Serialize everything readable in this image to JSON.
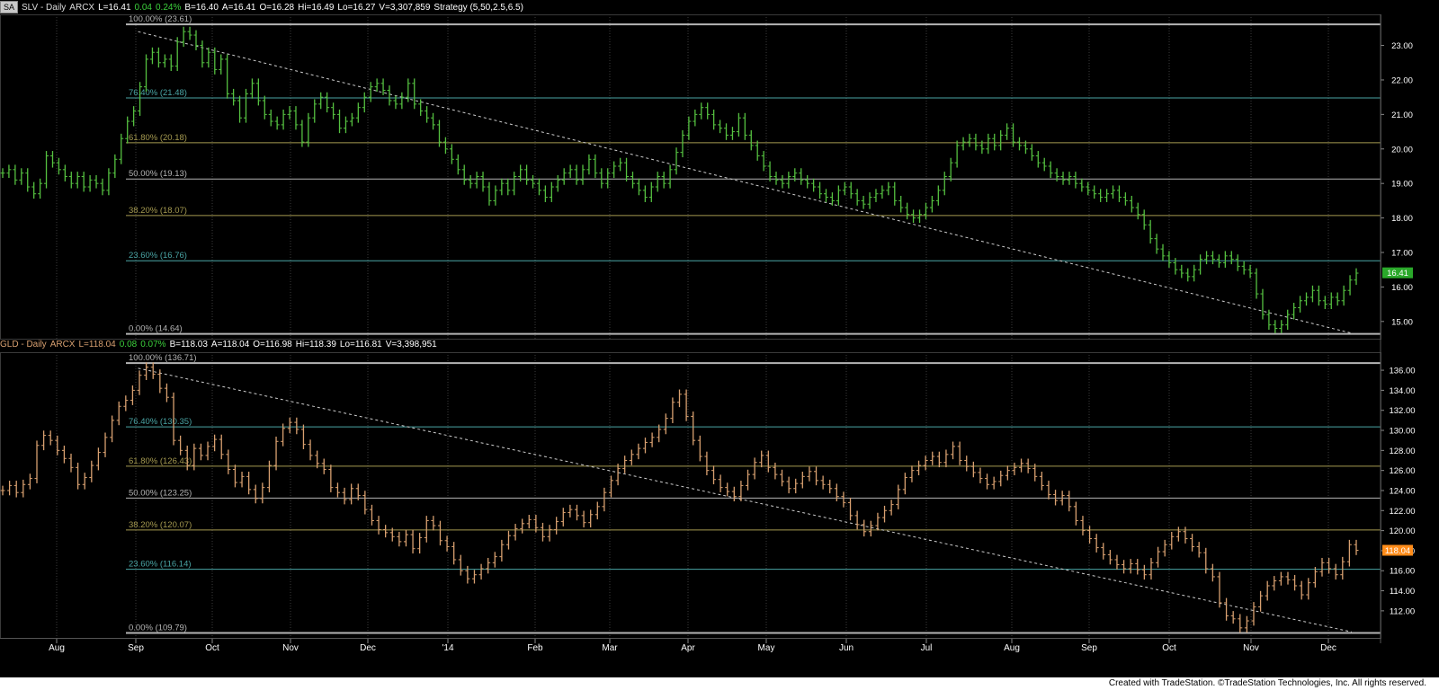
{
  "header_slv": {
    "sa": "SA",
    "symbol": "SLV - Daily",
    "exchange": "ARCX",
    "last": "L=16.41",
    "chg": "0.04",
    "pct": "0.24%",
    "bid": "B=16.40",
    "ask": "A=16.41",
    "open": "O=16.28",
    "hi": "Hi=16.49",
    "lo": "Lo=16.27",
    "vol": "V=3,307,859",
    "strategy": "Strategy (5,50,2.5,6.5)"
  },
  "header_gld": {
    "symbol": "GLD - Daily",
    "exchange": "ARCX",
    "last": "L=118.04",
    "chg": "0.08",
    "pct": "0.07%",
    "bid": "B=118.03",
    "ask": "A=118.04",
    "open": "O=116.98",
    "hi": "Hi=118.39",
    "lo": "Lo=116.81",
    "vol": "V=3,398,951"
  },
  "footer": {
    "text": "Created with TradeStation. ©TradeStation Technologies, Inc. All rights reserved."
  },
  "colors": {
    "background": "#000000",
    "slv_bars": "#55c040",
    "gld_bars": "#d8a070",
    "fib_gray": "#b4b4b4",
    "fib_teal": "#4aa5a5",
    "fib_olive": "#a59a50",
    "slv_last": "#2aa82a",
    "gld_last": "#ff8c1a"
  },
  "chart_data": [
    {
      "type": "ohlc",
      "name": "SLV - Daily",
      "x_tick_labels": [
        "Aug",
        "Sep",
        "Oct",
        "Nov",
        "Dec",
        "'14",
        "Feb",
        "Mar",
        "Apr",
        "May",
        "Jun",
        "Jul",
        "Aug",
        "Sep",
        "Oct",
        "Nov",
        "Dec"
      ],
      "y_tick_labels": [
        "23.00",
        "22.00",
        "21.00",
        "20.00",
        "19.00",
        "18.00",
        "17.00",
        "16.00",
        "15.00"
      ],
      "ylim": [
        14.5,
        23.9
      ],
      "last_value_label": "16.41",
      "fib_levels": [
        {
          "label": "100.00% (23.61)",
          "value": 23.61,
          "color": "#b4b4b4"
        },
        {
          "label": "76.40% (21.48)",
          "value": 21.48,
          "color": "#4aa5a5"
        },
        {
          "label": "61.80% (20.18)",
          "value": 20.18,
          "color": "#a59a50"
        },
        {
          "label": "50.00% (19.13)",
          "value": 19.13,
          "color": "#b4b4b4"
        },
        {
          "label": "38.20% (18.07)",
          "value": 18.07,
          "color": "#a59a50"
        },
        {
          "label": "23.60% (16.76)",
          "value": 16.76,
          "color": "#4aa5a5"
        },
        {
          "label": "0.00% (14.64)",
          "value": 14.64,
          "color": "#b4b4b4"
        }
      ],
      "trendline": [
        [
          0.1,
          23.4
        ],
        [
          0.979,
          14.66
        ]
      ],
      "series": [
        {
          "values": [
            19.3,
            19.4,
            19.1,
            19.3,
            18.9,
            18.7,
            19.0,
            19.8,
            19.6,
            19.4,
            19.2,
            19.0,
            19.2,
            18.9,
            19.1,
            19.0,
            18.8,
            19.3,
            19.7,
            20.3,
            20.8,
            21.1,
            21.8,
            22.6,
            22.8,
            22.5,
            22.6,
            22.4,
            23.1,
            23.4,
            23.3,
            23.0,
            22.5,
            22.8,
            22.3,
            22.6,
            21.6,
            21.4,
            20.9,
            21.6,
            21.9,
            21.4,
            21.0,
            20.8,
            20.7,
            21.0,
            21.1,
            20.7,
            20.2,
            20.9,
            21.3,
            21.5,
            21.2,
            21.0,
            20.6,
            20.8,
            20.9,
            21.2,
            21.5,
            21.8,
            21.9,
            21.7,
            21.4,
            21.3,
            21.5,
            21.9,
            21.3,
            21.1,
            20.9,
            20.7,
            20.2,
            20.0,
            19.7,
            19.4,
            19.1,
            19.0,
            19.2,
            18.9,
            18.5,
            18.8,
            19.0,
            18.8,
            19.2,
            19.4,
            19.1,
            19.0,
            18.8,
            18.6,
            18.9,
            19.1,
            19.3,
            19.4,
            19.1,
            19.4,
            19.7,
            19.3,
            19.0,
            19.3,
            19.5,
            19.6,
            19.2,
            19.0,
            18.8,
            18.6,
            18.9,
            19.2,
            19.0,
            19.4,
            19.9,
            20.4,
            20.8,
            21.0,
            21.2,
            21.0,
            20.7,
            20.6,
            20.4,
            20.5,
            20.9,
            20.4,
            20.1,
            19.8,
            19.5,
            19.2,
            19.1,
            19.0,
            19.2,
            19.3,
            19.1,
            19.0,
            18.9,
            18.7,
            18.6,
            18.5,
            18.8,
            18.9,
            18.7,
            18.5,
            18.4,
            18.6,
            18.7,
            18.8,
            18.9,
            18.5,
            18.3,
            18.1,
            18.0,
            18.1,
            18.3,
            18.5,
            18.8,
            19.2,
            19.6,
            20.1,
            20.2,
            20.3,
            20.1,
            20.0,
            20.3,
            20.1,
            20.4,
            20.6,
            20.2,
            20.1,
            20.0,
            19.8,
            19.6,
            19.5,
            19.3,
            19.2,
            19.1,
            19.2,
            19.0,
            18.9,
            18.8,
            18.7,
            18.6,
            18.7,
            18.8,
            18.6,
            18.5,
            18.3,
            18.1,
            17.8,
            17.4,
            17.1,
            16.9,
            16.7,
            16.5,
            16.4,
            16.3,
            16.5,
            16.8,
            16.9,
            16.8,
            16.7,
            16.9,
            16.8,
            16.6,
            16.5,
            16.4,
            15.8,
            15.2,
            14.9,
            14.8,
            14.9,
            15.2,
            15.4,
            15.6,
            15.7,
            15.9,
            15.6,
            15.5,
            15.7,
            15.6,
            15.9,
            16.2,
            16.4
          ]
        }
      ]
    },
    {
      "type": "ohlc",
      "name": "GLD - Daily",
      "x_tick_labels": [
        "Aug",
        "Sep",
        "Oct",
        "Nov",
        "Dec",
        "'14",
        "Feb",
        "Mar",
        "Apr",
        "May",
        "Jun",
        "Jul",
        "Aug",
        "Sep",
        "Oct",
        "Nov",
        "Dec"
      ],
      "y_tick_labels": [
        "136.00",
        "134.00",
        "132.00",
        "130.00",
        "128.00",
        "126.00",
        "124.00",
        "122.00",
        "120.00",
        "118.00",
        "116.00",
        "114.00",
        "112.00"
      ],
      "ylim": [
        109.3,
        137.8
      ],
      "last_value_label": "118.04",
      "fib_levels": [
        {
          "label": "100.00% (136.71)",
          "value": 136.71,
          "color": "#b4b4b4"
        },
        {
          "label": "76.40% (130.35)",
          "value": 130.35,
          "color": "#4aa5a5"
        },
        {
          "label": "61.80% (126.43)",
          "value": 126.43,
          "color": "#a59a50"
        },
        {
          "label": "50.00% (123.25)",
          "value": 123.25,
          "color": "#b4b4b4"
        },
        {
          "label": "38.20% (120.07)",
          "value": 120.07,
          "color": "#a59a50"
        },
        {
          "label": "23.60% (116.14)",
          "value": 116.14,
          "color": "#4aa5a5"
        },
        {
          "label": "0.00% (109.79)",
          "value": 109.79,
          "color": "#b4b4b4"
        }
      ],
      "trendline": [
        [
          0.1,
          136.2
        ],
        [
          0.979,
          109.9
        ]
      ],
      "series": [
        {
          "values": [
            124.0,
            124.5,
            123.8,
            124.6,
            125.2,
            128.5,
            129.5,
            129.0,
            128.0,
            127.2,
            126.3,
            124.6,
            125.3,
            126.5,
            127.8,
            129.3,
            131.0,
            132.4,
            133.0,
            134.0,
            135.5,
            136.3,
            135.6,
            134.2,
            133.3,
            129.0,
            128.0,
            126.5,
            128.2,
            127.5,
            128.4,
            129.1,
            127.6,
            126.1,
            124.8,
            125.4,
            124.1,
            123.2,
            124.3,
            126.5,
            128.9,
            130.2,
            130.8,
            130.1,
            128.6,
            127.5,
            126.7,
            126.1,
            124.3,
            123.8,
            123.1,
            124.2,
            123.5,
            122.1,
            121.0,
            120.1,
            119.8,
            119.4,
            118.9,
            119.6,
            118.2,
            119.3,
            121.0,
            120.5,
            119.0,
            118.4,
            117.1,
            116.0,
            115.2,
            115.6,
            116.2,
            116.8,
            117.4,
            118.6,
            119.5,
            120.2,
            120.7,
            121.1,
            120.3,
            119.4,
            120.1,
            120.9,
            121.8,
            122.1,
            121.5,
            120.8,
            121.6,
            122.4,
            123.8,
            125.0,
            126.2,
            127.0,
            127.6,
            128.2,
            128.8,
            129.3,
            130.1,
            131.2,
            132.8,
            133.6,
            131.4,
            129.0,
            127.4,
            126.0,
            125.1,
            124.3,
            123.9,
            123.4,
            124.5,
            125.6,
            126.8,
            127.5,
            126.3,
            125.6,
            124.9,
            124.2,
            124.7,
            125.4,
            125.9,
            125.0,
            124.6,
            124.2,
            123.4,
            122.8,
            121.5,
            120.6,
            119.9,
            120.5,
            121.3,
            122.0,
            122.6,
            124.1,
            125.3,
            126.0,
            126.5,
            127.0,
            127.4,
            126.8,
            127.6,
            128.4,
            127.0,
            126.4,
            125.8,
            125.2,
            124.6,
            124.9,
            125.5,
            126.0,
            126.3,
            126.7,
            126.2,
            125.4,
            124.5,
            123.6,
            123.0,
            123.5,
            122.4,
            121.0,
            120.0,
            119.2,
            118.3,
            117.6,
            117.1,
            116.6,
            116.2,
            116.7,
            116.1,
            115.6,
            116.8,
            117.9,
            118.6,
            119.4,
            119.9,
            119.2,
            118.4,
            117.8,
            116.2,
            115.4,
            112.8,
            111.5,
            111.2,
            110.3,
            111.0,
            112.4,
            113.5,
            114.5,
            115.0,
            115.4,
            115.1,
            114.5,
            113.6,
            114.8,
            115.9,
            116.8,
            116.2,
            115.6,
            116.9,
            118.6,
            118.04
          ]
        }
      ]
    }
  ]
}
